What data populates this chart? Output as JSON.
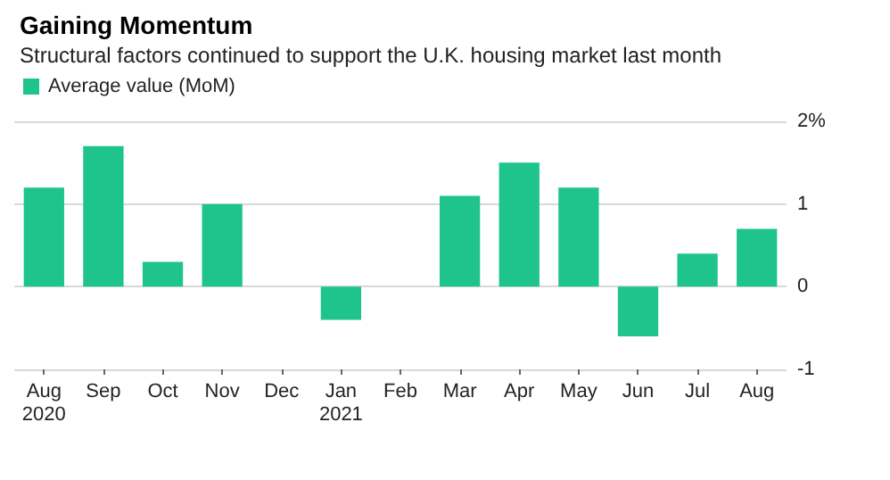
{
  "chart_data": {
    "type": "bar",
    "title": "Gaining Momentum",
    "subtitle": "Structural factors continued to support the U.K. housing market last month",
    "categories": [
      "Aug\n2020",
      "Sep",
      "Oct",
      "Nov",
      "Dec",
      "Jan\n2021",
      "Feb",
      "Mar",
      "Apr",
      "May",
      "Jun",
      "Jul",
      "Aug"
    ],
    "series": [
      {
        "name": "Average value (MoM)",
        "color": "#1ec48c",
        "values": [
          1.2,
          1.7,
          0.3,
          1.0,
          0,
          -0.4,
          0,
          1.1,
          1.5,
          1.2,
          -0.6,
          0.4,
          0.7
        ]
      }
    ],
    "ylim": [
      -1,
      2
    ],
    "yticks": [
      -1,
      0,
      1,
      {
        "value": 2,
        "label": "2%"
      }
    ],
    "grid": "y",
    "legend": "top left"
  }
}
